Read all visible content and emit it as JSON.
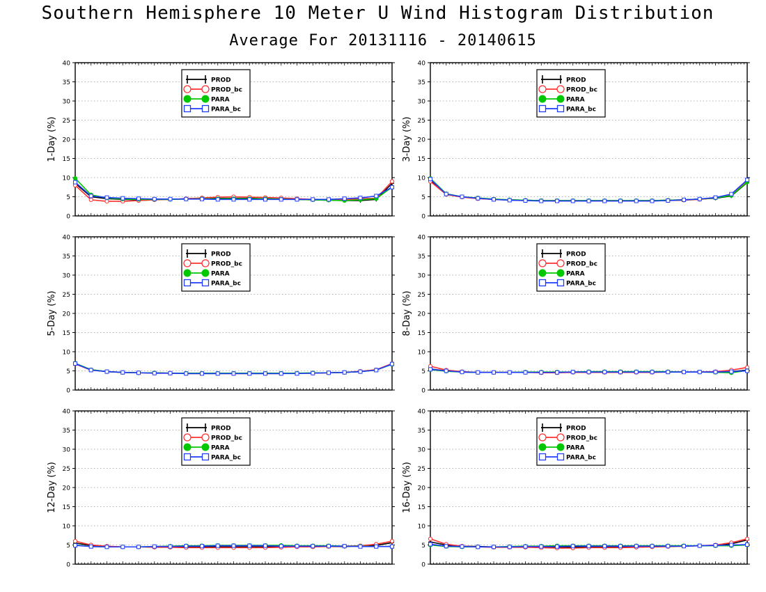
{
  "title": "Southern Hemisphere 10 Meter U Wind Histogram Distribution",
  "subtitle": "Average For 20131116 - 20140615",
  "colors": {
    "PROD": "#000000",
    "PROD_bc": "#ff3030",
    "PARA": "#00c800",
    "PARA_bc": "#1e3cff",
    "grid": "#999999"
  },
  "chart_data": [
    {
      "type": "line",
      "ylabel": "1-Day (%)",
      "ylim": [
        0,
        40
      ],
      "yticks": [
        0,
        5,
        10,
        15,
        20,
        25,
        30,
        35,
        40
      ],
      "x": [
        1,
        2,
        3,
        4,
        5,
        6,
        7,
        8,
        9,
        10,
        11,
        12,
        13,
        14,
        15,
        16,
        17,
        18,
        19,
        20,
        21
      ],
      "grid": true,
      "legend": "upper-center",
      "series": [
        {
          "name": "PROD",
          "marker": "cross",
          "values": [
            8.5,
            5.0,
            4.5,
            4.3,
            4.2,
            4.3,
            4.3,
            4.5,
            4.6,
            4.6,
            4.6,
            4.6,
            4.5,
            4.4,
            4.3,
            4.2,
            4.1,
            4.0,
            4.0,
            4.3,
            8.5
          ]
        },
        {
          "name": "PROD_bc",
          "marker": "circle",
          "values": [
            8.0,
            4.2,
            3.8,
            3.8,
            4.0,
            4.2,
            4.3,
            4.5,
            4.7,
            4.9,
            5.0,
            4.9,
            4.8,
            4.7,
            4.5,
            4.3,
            4.2,
            4.2,
            4.5,
            4.6,
            9.0
          ]
        },
        {
          "name": "PARA",
          "marker": "dot",
          "values": [
            9.8,
            5.5,
            4.7,
            4.4,
            4.3,
            4.3,
            4.3,
            4.4,
            4.5,
            4.5,
            4.5,
            4.5,
            4.5,
            4.4,
            4.3,
            4.2,
            4.1,
            4.0,
            4.2,
            4.5,
            7.5
          ]
        },
        {
          "name": "PARA_bc",
          "marker": "square",
          "values": [
            8.8,
            5.2,
            4.8,
            4.6,
            4.5,
            4.4,
            4.4,
            4.4,
            4.4,
            4.3,
            4.3,
            4.3,
            4.3,
            4.3,
            4.3,
            4.3,
            4.3,
            4.5,
            4.7,
            5.2,
            7.5
          ]
        }
      ]
    },
    {
      "type": "line",
      "ylabel": "3-Day (%)",
      "ylim": [
        0,
        40
      ],
      "yticks": [
        0,
        5,
        10,
        15,
        20,
        25,
        30,
        35,
        40
      ],
      "x": [
        1,
        2,
        3,
        4,
        5,
        6,
        7,
        8,
        9,
        10,
        11,
        12,
        13,
        14,
        15,
        16,
        17,
        18,
        19,
        20,
        21
      ],
      "grid": true,
      "legend": "upper-center",
      "series": [
        {
          "name": "PROD",
          "marker": "cross",
          "values": [
            9.3,
            5.7,
            5.0,
            4.6,
            4.3,
            4.2,
            4.1,
            4.0,
            4.0,
            4.0,
            4.0,
            4.0,
            4.0,
            4.0,
            4.0,
            4.1,
            4.2,
            4.4,
            4.6,
            5.2,
            8.7
          ]
        },
        {
          "name": "PROD_bc",
          "marker": "circle",
          "values": [
            9.0,
            5.6,
            4.9,
            4.5,
            4.3,
            4.1,
            4.0,
            4.0,
            3.9,
            3.9,
            3.9,
            3.9,
            3.9,
            3.9,
            3.9,
            4.0,
            4.1,
            4.3,
            4.7,
            5.5,
            9.2
          ]
        },
        {
          "name": "PARA",
          "marker": "dot",
          "values": [
            9.8,
            5.8,
            5.0,
            4.7,
            4.4,
            4.2,
            4.1,
            4.0,
            4.0,
            4.0,
            4.0,
            4.0,
            4.0,
            4.0,
            4.0,
            4.1,
            4.2,
            4.4,
            4.7,
            5.3,
            8.8
          ]
        },
        {
          "name": "PARA_bc",
          "marker": "square",
          "values": [
            9.6,
            5.7,
            5.0,
            4.6,
            4.3,
            4.1,
            4.0,
            3.9,
            3.9,
            3.9,
            3.9,
            3.9,
            3.9,
            3.9,
            3.9,
            4.0,
            4.2,
            4.4,
            4.8,
            5.7,
            9.4
          ]
        }
      ]
    },
    {
      "type": "line",
      "ylabel": "5-Day (%)",
      "ylim": [
        0,
        40
      ],
      "yticks": [
        0,
        5,
        10,
        15,
        20,
        25,
        30,
        35,
        40
      ],
      "x": [
        1,
        2,
        3,
        4,
        5,
        6,
        7,
        8,
        9,
        10,
        11,
        12,
        13,
        14,
        15,
        16,
        17,
        18,
        19,
        20,
        21
      ],
      "grid": true,
      "legend": "upper-center",
      "series": [
        {
          "name": "PROD",
          "marker": "cross",
          "values": [
            6.9,
            5.3,
            4.8,
            4.6,
            4.5,
            4.5,
            4.4,
            4.3,
            4.3,
            4.3,
            4.3,
            4.3,
            4.3,
            4.3,
            4.4,
            4.4,
            4.5,
            4.6,
            4.8,
            5.2,
            6.8
          ]
        },
        {
          "name": "PROD_bc",
          "marker": "circle",
          "values": [
            6.8,
            5.2,
            4.8,
            4.6,
            4.5,
            4.4,
            4.4,
            4.3,
            4.3,
            4.3,
            4.3,
            4.3,
            4.3,
            4.3,
            4.4,
            4.4,
            4.5,
            4.6,
            4.9,
            5.3,
            6.9
          ]
        },
        {
          "name": "PARA",
          "marker": "dot",
          "values": [
            7.0,
            5.3,
            4.8,
            4.6,
            4.5,
            4.5,
            4.4,
            4.4,
            4.4,
            4.4,
            4.4,
            4.4,
            4.4,
            4.4,
            4.4,
            4.5,
            4.5,
            4.6,
            4.8,
            5.2,
            6.7
          ]
        },
        {
          "name": "PARA_bc",
          "marker": "square",
          "values": [
            6.9,
            5.2,
            4.8,
            4.6,
            4.5,
            4.4,
            4.4,
            4.3,
            4.3,
            4.3,
            4.3,
            4.3,
            4.3,
            4.3,
            4.3,
            4.4,
            4.5,
            4.6,
            4.8,
            5.2,
            6.8
          ]
        }
      ]
    },
    {
      "type": "line",
      "ylabel": "8-Day (%)",
      "ylim": [
        0,
        40
      ],
      "yticks": [
        0,
        5,
        10,
        15,
        20,
        25,
        30,
        35,
        40
      ],
      "x": [
        1,
        2,
        3,
        4,
        5,
        6,
        7,
        8,
        9,
        10,
        11,
        12,
        13,
        14,
        15,
        16,
        17,
        18,
        19,
        20,
        21
      ],
      "grid": true,
      "legend": "upper-center",
      "series": [
        {
          "name": "PROD",
          "marker": "cross",
          "values": [
            5.5,
            5.0,
            4.7,
            4.6,
            4.6,
            4.6,
            4.6,
            4.6,
            4.6,
            4.7,
            4.7,
            4.7,
            4.7,
            4.7,
            4.7,
            4.7,
            4.7,
            4.7,
            4.7,
            4.8,
            5.2
          ]
        },
        {
          "name": "PROD_bc",
          "marker": "circle",
          "values": [
            6.2,
            5.2,
            4.8,
            4.6,
            4.6,
            4.6,
            4.6,
            4.5,
            4.5,
            4.6,
            4.6,
            4.6,
            4.6,
            4.6,
            4.6,
            4.7,
            4.7,
            4.7,
            4.8,
            5.2,
            5.9
          ]
        },
        {
          "name": "PARA",
          "marker": "dot",
          "values": [
            5.3,
            4.9,
            4.7,
            4.6,
            4.6,
            4.6,
            4.7,
            4.7,
            4.7,
            4.7,
            4.8,
            4.8,
            4.8,
            4.8,
            4.8,
            4.8,
            4.7,
            4.7,
            4.6,
            4.5,
            5.1
          ]
        },
        {
          "name": "PARA_bc",
          "marker": "square",
          "values": [
            5.4,
            5.0,
            4.7,
            4.6,
            4.6,
            4.6,
            4.6,
            4.6,
            4.6,
            4.7,
            4.7,
            4.7,
            4.7,
            4.7,
            4.7,
            4.7,
            4.7,
            4.7,
            4.7,
            4.8,
            5.0
          ]
        }
      ]
    },
    {
      "type": "line",
      "ylabel": "12-Day (%)",
      "ylim": [
        0,
        40
      ],
      "yticks": [
        0,
        5,
        10,
        15,
        20,
        25,
        30,
        35,
        40
      ],
      "x": [
        1,
        2,
        3,
        4,
        5,
        6,
        7,
        8,
        9,
        10,
        11,
        12,
        13,
        14,
        15,
        16,
        17,
        18,
        19,
        20,
        21
      ],
      "grid": true,
      "legend": "upper-center",
      "series": [
        {
          "name": "PROD",
          "marker": "cross",
          "values": [
            5.5,
            4.9,
            4.6,
            4.5,
            4.5,
            4.5,
            4.5,
            4.5,
            4.5,
            4.5,
            4.5,
            4.5,
            4.5,
            4.6,
            4.6,
            4.6,
            4.6,
            4.6,
            4.7,
            4.9,
            5.6
          ]
        },
        {
          "name": "PROD_bc",
          "marker": "circle",
          "values": [
            6.0,
            5.0,
            4.7,
            4.5,
            4.5,
            4.4,
            4.4,
            4.3,
            4.3,
            4.3,
            4.3,
            4.3,
            4.3,
            4.4,
            4.5,
            4.5,
            4.6,
            4.7,
            4.8,
            5.2,
            6.0
          ]
        },
        {
          "name": "PARA",
          "marker": "dot",
          "values": [
            5.0,
            4.6,
            4.5,
            4.5,
            4.5,
            4.6,
            4.7,
            4.8,
            4.8,
            4.9,
            4.9,
            4.9,
            4.9,
            4.9,
            4.8,
            4.8,
            4.8,
            4.7,
            4.7,
            4.6,
            4.6
          ]
        },
        {
          "name": "PARA_bc",
          "marker": "square",
          "values": [
            4.9,
            4.6,
            4.5,
            4.5,
            4.5,
            4.6,
            4.6,
            4.7,
            4.7,
            4.8,
            4.8,
            4.8,
            4.8,
            4.7,
            4.7,
            4.7,
            4.7,
            4.7,
            4.6,
            4.6,
            4.6
          ]
        }
      ]
    },
    {
      "type": "line",
      "ylabel": "16-Day (%)",
      "ylim": [
        0,
        40
      ],
      "yticks": [
        0,
        5,
        10,
        15,
        20,
        25,
        30,
        35,
        40
      ],
      "x": [
        1,
        2,
        3,
        4,
        5,
        6,
        7,
        8,
        9,
        10,
        11,
        12,
        13,
        14,
        15,
        16,
        17,
        18,
        19,
        20,
        21
      ],
      "grid": true,
      "legend": "upper-center",
      "series": [
        {
          "name": "PROD",
          "marker": "cross",
          "values": [
            5.8,
            5.0,
            4.7,
            4.6,
            4.5,
            4.5,
            4.5,
            4.5,
            4.4,
            4.4,
            4.4,
            4.4,
            4.4,
            4.5,
            4.5,
            4.6,
            4.7,
            4.8,
            4.9,
            5.3,
            6.3
          ]
        },
        {
          "name": "PROD_bc",
          "marker": "circle",
          "values": [
            6.6,
            5.2,
            4.7,
            4.5,
            4.4,
            4.4,
            4.4,
            4.3,
            4.2,
            4.2,
            4.3,
            4.3,
            4.3,
            4.4,
            4.5,
            4.6,
            4.7,
            4.8,
            5.0,
            5.6,
            6.6
          ]
        },
        {
          "name": "PARA",
          "marker": "dot",
          "values": [
            5.0,
            4.6,
            4.5,
            4.5,
            4.5,
            4.6,
            4.7,
            4.7,
            4.8,
            4.8,
            4.8,
            4.8,
            4.8,
            4.8,
            4.8,
            4.8,
            4.8,
            4.8,
            4.8,
            4.8,
            5.0
          ]
        },
        {
          "name": "PARA_bc",
          "marker": "square",
          "values": [
            5.2,
            4.7,
            4.6,
            4.5,
            4.5,
            4.5,
            4.6,
            4.6,
            4.6,
            4.7,
            4.7,
            4.7,
            4.7,
            4.7,
            4.7,
            4.7,
            4.7,
            4.8,
            4.9,
            5.0,
            5.1
          ]
        }
      ]
    }
  ]
}
